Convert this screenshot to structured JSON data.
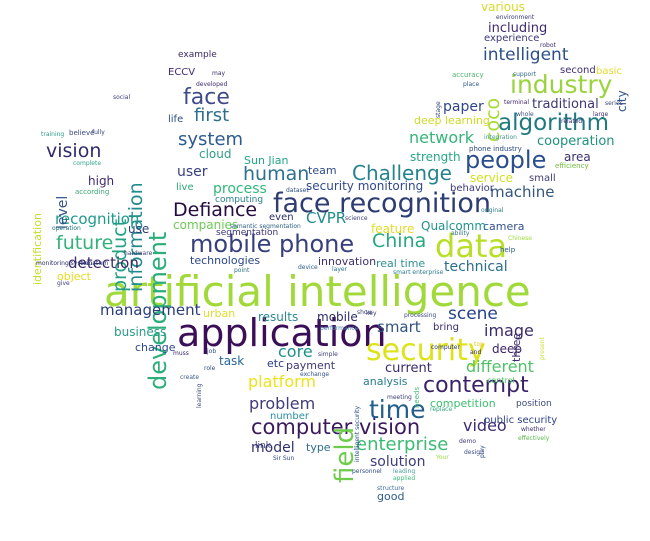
{
  "words": [
    {
      "text": "artificial intelligence",
      "color": "#a2d93a"
    },
    {
      "text": "application",
      "color": "#3b0f58"
    },
    {
      "text": "face recognition",
      "color": "#2e3c74"
    },
    {
      "text": "mobile phone",
      "color": "#373f7d"
    },
    {
      "text": "data",
      "color": "#b9de28"
    },
    {
      "text": "security",
      "color": "#dde318"
    },
    {
      "text": "computer vision",
      "color": "#3a1a5d"
    },
    {
      "text": "development",
      "color": "#2bae7a"
    },
    {
      "text": "industry",
      "color": "#9ad33b"
    },
    {
      "text": "algorithm",
      "color": "#1f7a7e"
    },
    {
      "text": "people",
      "color": "#2a4f8c"
    },
    {
      "text": "Challenge",
      "color": "#25838e"
    },
    {
      "text": "Defiance",
      "color": "#260b40"
    },
    {
      "text": "field",
      "color": "#6fcb4c"
    },
    {
      "text": "time",
      "color": "#235e8c"
    },
    {
      "text": "contempt",
      "color": "#3b2268"
    },
    {
      "text": "China",
      "color": "#26a980"
    },
    {
      "text": "face",
      "color": "#3d4b8a"
    },
    {
      "text": "information",
      "color": "#238b8e"
    },
    {
      "text": "product",
      "color": "#25a185"
    },
    {
      "text": "vision",
      "color": "#2f2b6f"
    },
    {
      "text": "future",
      "color": "#32b27a"
    },
    {
      "text": "human",
      "color": "#2d7091"
    },
    {
      "text": "system",
      "color": "#2d5a8f"
    },
    {
      "text": "first",
      "color": "#2c6e8e"
    },
    {
      "text": "enterprise",
      "color": "#3cbb75"
    },
    {
      "text": "network",
      "color": "#34b679"
    },
    {
      "text": "intelligent",
      "color": "#2c4f89"
    },
    {
      "text": "recognition",
      "color": "#1f9a8a"
    },
    {
      "text": "detection",
      "color": "#3f2a6c"
    },
    {
      "text": "management",
      "color": "#2a3d7c"
    },
    {
      "text": "platform",
      "color": "#ece21c"
    },
    {
      "text": "scene",
      "color": "#25418a"
    },
    {
      "text": "image",
      "color": "#382c6e"
    },
    {
      "text": "different",
      "color": "#4fc267"
    },
    {
      "text": "problem",
      "color": "#403b7a"
    },
    {
      "text": "smart",
      "color": "#31537f"
    },
    {
      "text": "core",
      "color": "#1d908c"
    },
    {
      "text": "video",
      "color": "#3e2c73"
    },
    {
      "text": "solution",
      "color": "#3f3b7c"
    },
    {
      "text": "machine",
      "color": "#35567c"
    },
    {
      "text": "coco",
      "color": "#a8db34"
    },
    {
      "text": "process",
      "color": "#31b77a"
    },
    {
      "text": "user",
      "color": "#363e7e"
    },
    {
      "text": "level",
      "color": "#33568f"
    },
    {
      "text": "technical",
      "color": "#2a6e8c"
    },
    {
      "text": "current",
      "color": "#3a2a6e"
    },
    {
      "text": "paper",
      "color": "#30448a"
    },
    {
      "text": "model",
      "color": "#30316e"
    },
    {
      "text": "including",
      "color": "#3e2b6f"
    },
    {
      "text": "various",
      "color": "#d8d82a"
    },
    {
      "text": "CVPR",
      "color": "#1f8a8d"
    },
    {
      "text": "strength",
      "color": "#26a586"
    },
    {
      "text": "camera",
      "color": "#33528d"
    },
    {
      "text": "cooperation",
      "color": "#20917f"
    },
    {
      "text": "traditional",
      "color": "#3b3874"
    },
    {
      "text": "results",
      "color": "#2b8a8c"
    },
    {
      "text": "security monitoring",
      "color": "#31488d"
    },
    {
      "text": "Sun Jian",
      "color": "#20a486"
    },
    {
      "text": "team",
      "color": "#2f4b89"
    },
    {
      "text": "cloud",
      "color": "#2f9c89"
    },
    {
      "text": "companies",
      "color": "#6cca56"
    },
    {
      "text": "innovation",
      "color": "#40306f"
    },
    {
      "text": "high",
      "color": "#41286f"
    },
    {
      "text": "service",
      "color": "#d1e020"
    },
    {
      "text": "Qualcomm",
      "color": "#21938c"
    },
    {
      "text": "deep",
      "color": "#3b2369"
    },
    {
      "text": "business",
      "color": "#2b9a8a"
    },
    {
      "text": "change",
      "color": "#2a4a88"
    },
    {
      "text": "task",
      "color": "#25679b"
    },
    {
      "text": "mobile",
      "color": "#2b2d66"
    },
    {
      "text": "payment",
      "color": "#3d3878"
    },
    {
      "text": "etc",
      "color": "#2a3a7a"
    },
    {
      "text": "analysis",
      "color": "#287d8e"
    },
    {
      "text": "competition",
      "color": "#3cbf70"
    },
    {
      "text": "real time",
      "color": "#2f9190"
    },
    {
      "text": "feature",
      "color": "#e4db24"
    },
    {
      "text": "deep learning",
      "color": "#cfd825"
    },
    {
      "text": "ECCV",
      "color": "#3f2a70"
    },
    {
      "text": "example",
      "color": "#3c2866"
    },
    {
      "text": "technologies",
      "color": "#2a4889"
    },
    {
      "text": "urban",
      "color": "#e0dd2b"
    },
    {
      "text": "type",
      "color": "#2c6d8a"
    },
    {
      "text": "good",
      "color": "#2e5b8c"
    },
    {
      "text": "small",
      "color": "#403f79"
    },
    {
      "text": "area",
      "color": "#3b2f70"
    },
    {
      "text": "city",
      "color": "#33538f"
    },
    {
      "text": "second",
      "color": "#3e2d6f"
    },
    {
      "text": "basic",
      "color": "#e3db2a"
    },
    {
      "text": "experience",
      "color": "#3c357a"
    },
    {
      "text": "three",
      "color": "#3b2c6c"
    },
    {
      "text": "use",
      "color": "#2b3f78"
    },
    {
      "text": "life",
      "color": "#2c4e87"
    },
    {
      "text": "even",
      "color": "#2c2f6e"
    },
    {
      "text": "computing",
      "color": "#277f8e"
    },
    {
      "text": "segmentation",
      "color": "#3a3473"
    },
    {
      "text": "bring",
      "color": "#3a2a6a"
    },
    {
      "text": "live",
      "color": "#2da778"
    },
    {
      "text": "behavior",
      "color": "#3a3b79"
    },
    {
      "text": "public security",
      "color": "#2d4286"
    },
    {
      "text": "identification",
      "color": "#c6dc2a"
    },
    {
      "text": "object",
      "color": "#e8da1f"
    },
    {
      "text": "number",
      "color": "#2a8fa0"
    },
    {
      "text": "link",
      "color": "#3c3b78"
    },
    {
      "text": "position",
      "color": "#3f4a7a"
    },
    {
      "text": "hardware",
      "color": "#3a4271"
    },
    {
      "text": "according",
      "color": "#3aa874"
    },
    {
      "text": "training",
      "color": "#2a9b8a"
    },
    {
      "text": "believe",
      "color": "#3a4681"
    },
    {
      "text": "fully",
      "color": "#2e3e77"
    },
    {
      "text": "social",
      "color": "#3b3e77"
    },
    {
      "text": "complete",
      "color": "#33a38b"
    },
    {
      "text": "monitoring system",
      "color": "#2a2f68"
    },
    {
      "text": "visual",
      "color": "#35407a"
    },
    {
      "text": "turn",
      "color": "#33447c"
    },
    {
      "text": "operation",
      "color": "#1f6f7e"
    },
    {
      "text": "point",
      "color": "#2f6e87"
    },
    {
      "text": "layer",
      "color": "#28708c"
    },
    {
      "text": "device",
      "color": "#2c5d88"
    },
    {
      "text": "dataset",
      "color": "#2a4e87"
    },
    {
      "text": "semantic segmentation",
      "color": "#2b5f87"
    },
    {
      "text": "smart enterprise",
      "color": "#2c7d8c"
    },
    {
      "text": "help",
      "color": "#2b5a8a"
    },
    {
      "text": "Chinese",
      "color": "#9fdb3a"
    },
    {
      "text": "original",
      "color": "#2c7d8c"
    },
    {
      "text": "ability",
      "color": "#2e7188"
    },
    {
      "text": "whole",
      "color": "#3b4e7c"
    },
    {
      "text": "large",
      "color": "#3e2f6e"
    },
    {
      "text": "series",
      "color": "#3a4574"
    },
    {
      "text": "terminal",
      "color": "#40286a"
    },
    {
      "text": "place",
      "color": "#2e5683"
    },
    {
      "text": "stage",
      "color": "#2f3d78"
    },
    {
      "text": "accuracy",
      "color": "#4fb46f"
    },
    {
      "text": "support",
      "color": "#2d6b88"
    },
    {
      "text": "robot",
      "color": "#3c2c6b"
    },
    {
      "text": "environment",
      "color": "#3a3a74"
    },
    {
      "text": "may",
      "color": "#3c2c6b"
    },
    {
      "text": "developed",
      "color": "#3e2c70"
    },
    {
      "text": "phone industry",
      "color": "#2a497f"
    },
    {
      "text": "integration",
      "color": "#3f9b8a"
    },
    {
      "text": "efficiency",
      "color": "#6fbc3a"
    },
    {
      "text": "related",
      "color": "#3b2f72"
    },
    {
      "text": "science",
      "color": "#3f3b78"
    },
    {
      "text": "show",
      "color": "#3f4575"
    },
    {
      "text": "processing",
      "color": "#3d4b88"
    },
    {
      "text": "key",
      "color": "#3c3573"
    },
    {
      "text": "performance",
      "color": "#4a8ab2"
    },
    {
      "text": "exchange",
      "color": "#33528a"
    },
    {
      "text": "intelligent security",
      "color": "#2a4e86"
    },
    {
      "text": "simple",
      "color": "#3b3e74"
    },
    {
      "text": "job",
      "color": "#2c4a82"
    },
    {
      "text": "role",
      "color": "#2e4b82"
    },
    {
      "text": "learning",
      "color": "#3f4b7e"
    },
    {
      "text": "meeting",
      "color": "#3d3d78"
    },
    {
      "text": "needs",
      "color": "#3fbe72"
    },
    {
      "text": "control",
      "color": "#4fc76a"
    },
    {
      "text": "replace",
      "color": "#33a47d"
    },
    {
      "text": "demo",
      "color": "#3c3c74"
    },
    {
      "text": "design",
      "color": "#3c4c84"
    },
    {
      "text": "play",
      "color": "#34508a"
    },
    {
      "text": "personnel",
      "color": "#2e4c86"
    },
    {
      "text": "structure",
      "color": "#3d6c9a"
    },
    {
      "text": "whether",
      "color": "#3f2f6c"
    },
    {
      "text": "effectively",
      "color": "#5cb74f"
    },
    {
      "text": "Sir Sun",
      "color": "#2f4b88"
    },
    {
      "text": "applied",
      "color": "#3cbe7a"
    },
    {
      "text": "leading",
      "color": "#4a9a9a"
    },
    {
      "text": "Your",
      "color": "#9ed744"
    },
    {
      "text": "top",
      "color": "#e0c828"
    },
    {
      "text": "and",
      "color": "#3f2a70"
    },
    {
      "text": "present",
      "color": "#cddf36"
    },
    {
      "text": "give",
      "color": "#3f3d7b"
    },
    {
      "text": "computer",
      "color": "#2c2f6a"
    },
    {
      "text": "muss",
      "color": "#3b2a6b"
    },
    {
      "text": "create",
      "color": "#3b5b88"
    }
  ]
}
